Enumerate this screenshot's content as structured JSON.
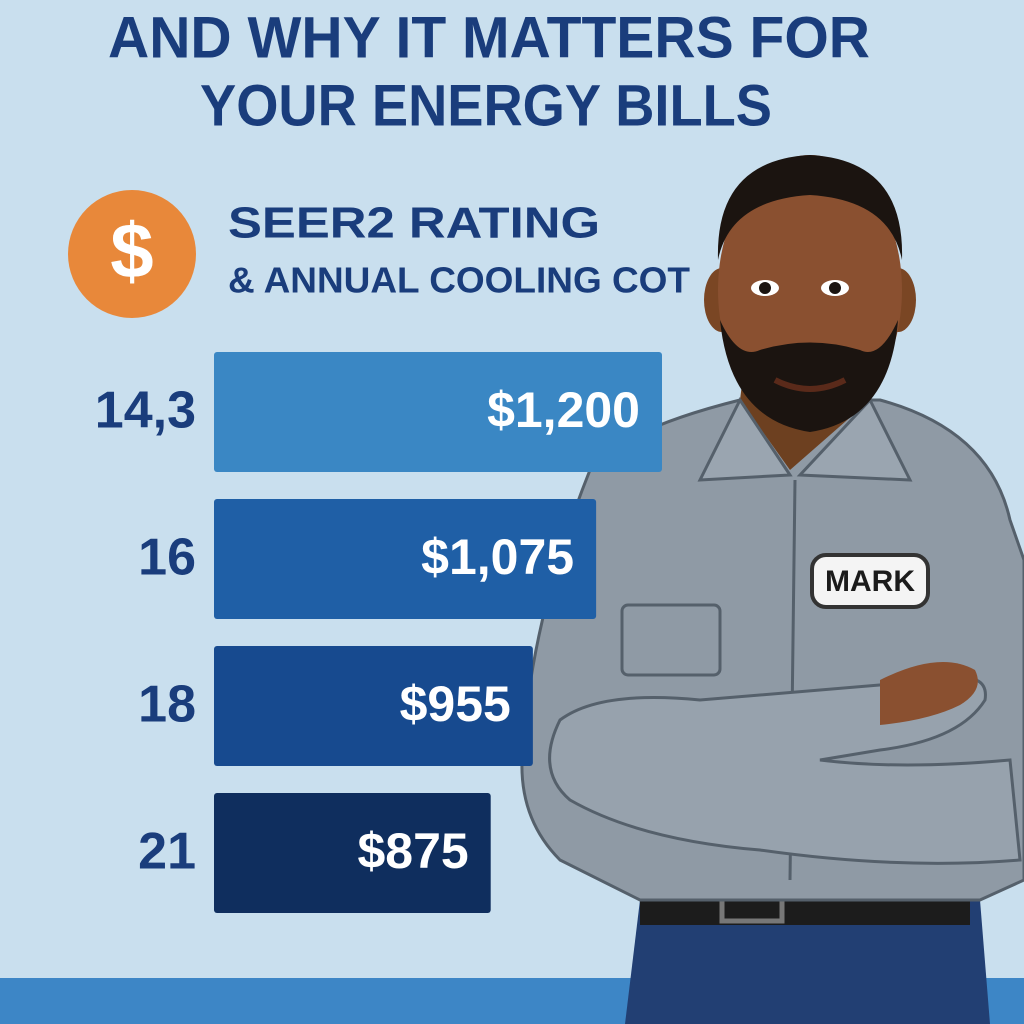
{
  "chart_data": {
    "type": "bar",
    "orientation": "horizontal",
    "title": [
      "AND WHY IT MATTERS FOR",
      "YOUR ENERGY BILLS"
    ],
    "subtitle": [
      "SEER2 RATING",
      "& ANNUAL COOLING COT"
    ],
    "annotations": [
      "$",
      "MARK"
    ],
    "categories": [
      "14,3",
      "16",
      "18",
      "21"
    ],
    "values": [
      1200,
      1075,
      955,
      875
    ],
    "value_labels": [
      "$1,200",
      "$1,075",
      "$955",
      "$875"
    ],
    "colors": [
      "#3a87c4",
      "#1f5fa6",
      "#174a8f",
      "#0f2e5e"
    ],
    "xlim": [
      350,
      1200
    ]
  }
}
